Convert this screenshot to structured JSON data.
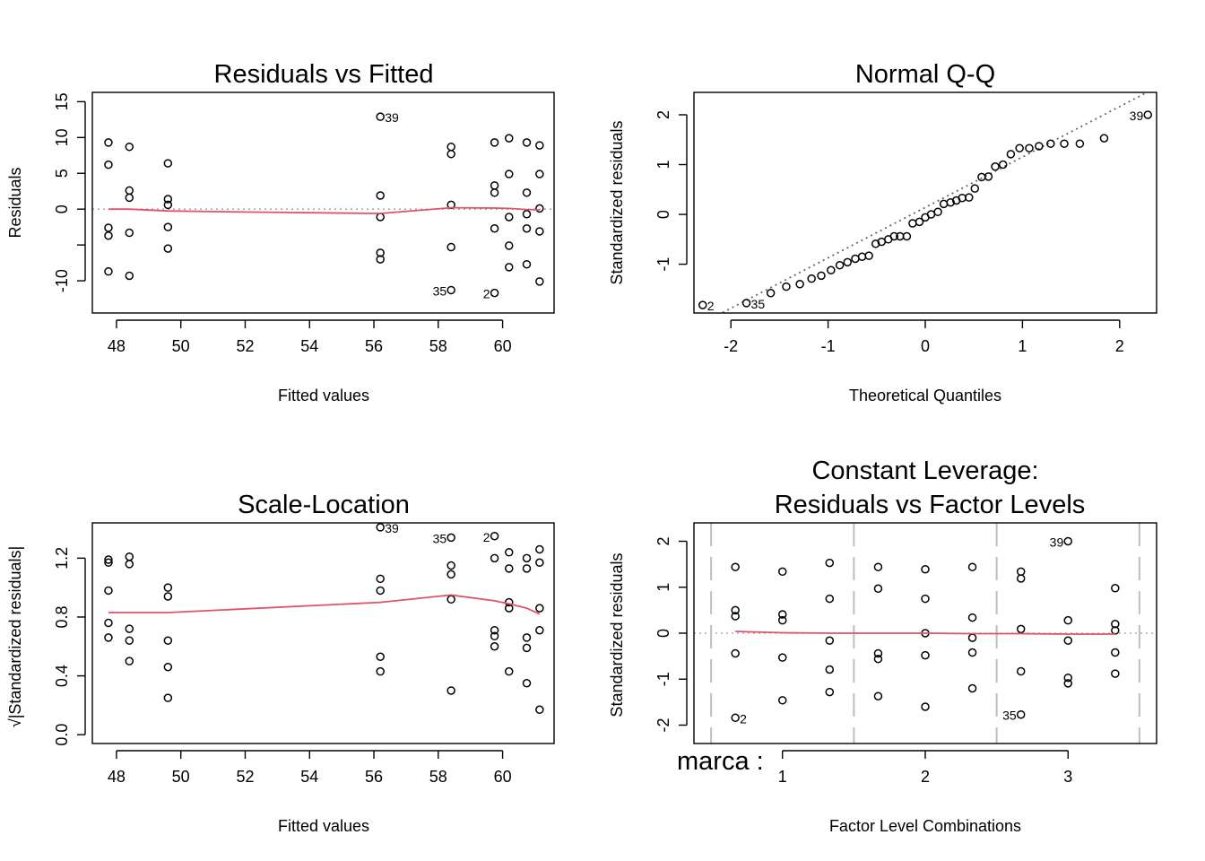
{
  "chart_data": [
    {
      "type": "scatter",
      "title": "Residuals vs Fitted",
      "xlabel": "Fitted values",
      "ylabel": "Residuals",
      "xlim": [
        47.25,
        61.6
      ],
      "ylim": [
        -14.5,
        16.3
      ],
      "xticks": [
        48,
        50,
        52,
        54,
        56,
        58,
        60
      ],
      "yticks": [
        -10,
        -5,
        0,
        5,
        10,
        15
      ],
      "yticklabels": [
        "-10",
        "",
        "0",
        "5",
        "10",
        "15"
      ],
      "points": [
        [
          47.75,
          9.3
        ],
        [
          47.75,
          6.2
        ],
        [
          47.75,
          -2.6
        ],
        [
          47.75,
          -3.7
        ],
        [
          47.75,
          -8.7
        ],
        [
          48.4,
          8.7
        ],
        [
          48.4,
          2.6
        ],
        [
          48.4,
          1.6
        ],
        [
          48.4,
          -3.3
        ],
        [
          48.4,
          -9.3
        ],
        [
          49.6,
          6.4
        ],
        [
          49.6,
          1.4
        ],
        [
          49.6,
          0.6
        ],
        [
          49.6,
          -2.5
        ],
        [
          49.6,
          -5.5
        ],
        [
          56.2,
          12.9
        ],
        [
          56.2,
          1.9
        ],
        [
          56.2,
          -1.1
        ],
        [
          56.2,
          -6.1
        ],
        [
          56.2,
          -7.0
        ],
        [
          58.4,
          8.7
        ],
        [
          58.4,
          7.7
        ],
        [
          58.4,
          0.6
        ],
        [
          58.4,
          -5.3
        ],
        [
          58.4,
          -11.3
        ],
        [
          59.75,
          9.3
        ],
        [
          59.75,
          3.3
        ],
        [
          59.75,
          2.3
        ],
        [
          59.75,
          -2.7
        ],
        [
          59.75,
          -11.7
        ],
        [
          60.2,
          9.9
        ],
        [
          60.2,
          4.9
        ],
        [
          60.2,
          -1.1
        ],
        [
          60.2,
          -5.1
        ],
        [
          60.2,
          -8.1
        ],
        [
          60.75,
          9.3
        ],
        [
          60.75,
          2.3
        ],
        [
          60.75,
          -0.7
        ],
        [
          60.75,
          -2.7
        ],
        [
          60.75,
          -7.7
        ],
        [
          61.15,
          8.9
        ],
        [
          61.15,
          4.9
        ],
        [
          61.15,
          0.1
        ],
        [
          61.15,
          -3.1
        ],
        [
          61.15,
          -10.1
        ]
      ],
      "smooth": [
        [
          47.75,
          0.0
        ],
        [
          48.4,
          0.0
        ],
        [
          49.6,
          -0.25
        ],
        [
          52.0,
          -0.4
        ],
        [
          56.2,
          -0.6
        ],
        [
          58.4,
          0.2
        ],
        [
          59.75,
          0.15
        ],
        [
          60.2,
          0.1
        ],
        [
          60.75,
          -0.05
        ],
        [
          61.15,
          -0.1
        ]
      ],
      "labels": [
        {
          "x": 56.2,
          "y": 12.9,
          "text": "39",
          "side": "right"
        },
        {
          "x": 58.4,
          "y": -11.3,
          "text": "35",
          "side": "left"
        },
        {
          "x": 59.75,
          "y": -11.7,
          "text": "2",
          "side": "left"
        }
      ]
    },
    {
      "type": "scatter",
      "title": "Normal Q-Q",
      "xlabel": "Theoretical Quantiles",
      "ylabel": "Standardized residuals",
      "xlim": [
        -2.38,
        2.38
      ],
      "ylim": [
        -1.98,
        2.45
      ],
      "xticks": [
        -2,
        -1,
        0,
        1,
        2
      ],
      "yticks": [
        -1,
        0,
        1,
        2
      ],
      "yticklabels": [
        "-1",
        "0",
        "1",
        "2"
      ],
      "points": [
        [
          -2.29,
          -1.82
        ],
        [
          -1.84,
          -1.78
        ],
        [
          -1.59,
          -1.58
        ],
        [
          -1.43,
          -1.45
        ],
        [
          -1.29,
          -1.4
        ],
        [
          -1.17,
          -1.29
        ],
        [
          -1.07,
          -1.23
        ],
        [
          -0.97,
          -1.12
        ],
        [
          -0.88,
          -1.02
        ],
        [
          -0.8,
          -0.96
        ],
        [
          -0.72,
          -0.89
        ],
        [
          -0.65,
          -0.85
        ],
        [
          -0.58,
          -0.83
        ],
        [
          -0.51,
          -0.59
        ],
        [
          -0.45,
          -0.55
        ],
        [
          -0.38,
          -0.5
        ],
        [
          -0.32,
          -0.44
        ],
        [
          -0.26,
          -0.44
        ],
        [
          -0.19,
          -0.44
        ],
        [
          -0.13,
          -0.18
        ],
        [
          -0.06,
          -0.15
        ],
        [
          0.0,
          -0.06
        ],
        [
          0.06,
          0.0
        ],
        [
          0.13,
          0.05
        ],
        [
          0.19,
          0.21
        ],
        [
          0.26,
          0.24
        ],
        [
          0.32,
          0.28
        ],
        [
          0.38,
          0.33
        ],
        [
          0.45,
          0.34
        ],
        [
          0.51,
          0.52
        ],
        [
          0.58,
          0.75
        ],
        [
          0.65,
          0.76
        ],
        [
          0.72,
          0.96
        ],
        [
          0.8,
          1.0
        ],
        [
          0.88,
          1.21
        ],
        [
          0.97,
          1.33
        ],
        [
          1.07,
          1.33
        ],
        [
          1.17,
          1.37
        ],
        [
          1.29,
          1.42
        ],
        [
          1.43,
          1.42
        ],
        [
          1.59,
          1.42
        ],
        [
          1.84,
          1.53
        ],
        [
          2.29,
          2.0
        ]
      ],
      "reference_line": [
        [
          -2.38,
          -2.27
        ],
        [
          2.38,
          2.55
        ]
      ],
      "labels": [
        {
          "x": -2.29,
          "y": -1.82,
          "text": "2",
          "side": "right"
        },
        {
          "x": -1.84,
          "y": -1.78,
          "text": "35",
          "side": "right"
        },
        {
          "x": 2.29,
          "y": 2.0,
          "text": "39",
          "side": "left"
        }
      ]
    },
    {
      "type": "scatter",
      "title": "Scale-Location",
      "xlabel": "Fitted values",
      "ylabel": "√|Standardized residuals|",
      "xlim": [
        47.25,
        61.6
      ],
      "ylim": [
        -0.06,
        1.44
      ],
      "xticks": [
        48,
        50,
        52,
        54,
        56,
        58,
        60
      ],
      "yticks": [
        0.0,
        0.4,
        0.8,
        1.2
      ],
      "yticklabels": [
        "0.0",
        "0.4",
        "0.8",
        "1.2"
      ],
      "points": [
        [
          47.75,
          1.19
        ],
        [
          47.75,
          1.17
        ],
        [
          47.75,
          0.98
        ],
        [
          47.75,
          0.76
        ],
        [
          47.75,
          0.66
        ],
        [
          48.4,
          1.21
        ],
        [
          48.4,
          1.16
        ],
        [
          48.4,
          0.72
        ],
        [
          48.4,
          0.64
        ],
        [
          48.4,
          0.5
        ],
        [
          49.6,
          1.0
        ],
        [
          49.6,
          0.94
        ],
        [
          49.6,
          0.64
        ],
        [
          49.6,
          0.46
        ],
        [
          49.6,
          0.25
        ],
        [
          56.2,
          1.41
        ],
        [
          56.2,
          1.06
        ],
        [
          56.2,
          0.98
        ],
        [
          56.2,
          0.53
        ],
        [
          56.2,
          0.43
        ],
        [
          58.4,
          1.34
        ],
        [
          58.4,
          1.15
        ],
        [
          58.4,
          1.09
        ],
        [
          58.4,
          0.92
        ],
        [
          58.4,
          0.3
        ],
        [
          59.75,
          1.35
        ],
        [
          59.75,
          1.2
        ],
        [
          59.75,
          0.71
        ],
        [
          59.75,
          0.67
        ],
        [
          59.75,
          0.6
        ],
        [
          60.2,
          1.24
        ],
        [
          60.2,
          1.13
        ],
        [
          60.2,
          0.9
        ],
        [
          60.2,
          0.86
        ],
        [
          60.2,
          0.43
        ],
        [
          60.75,
          1.2
        ],
        [
          60.75,
          1.13
        ],
        [
          60.75,
          0.66
        ],
        [
          60.75,
          0.59
        ],
        [
          60.75,
          0.35
        ],
        [
          61.15,
          1.26
        ],
        [
          61.15,
          1.17
        ],
        [
          61.15,
          0.86
        ],
        [
          61.15,
          0.71
        ],
        [
          61.15,
          0.17
        ]
      ],
      "smooth": [
        [
          47.75,
          0.83
        ],
        [
          49.6,
          0.83
        ],
        [
          56.2,
          0.9
        ],
        [
          58.4,
          0.95
        ],
        [
          59.75,
          0.91
        ],
        [
          60.2,
          0.89
        ],
        [
          60.75,
          0.86
        ],
        [
          61.15,
          0.82
        ]
      ],
      "labels": [
        {
          "x": 56.2,
          "y": 1.41,
          "text": "39",
          "side": "right"
        },
        {
          "x": 58.4,
          "y": 1.34,
          "text": "35",
          "side": "left"
        },
        {
          "x": 59.75,
          "y": 1.35,
          "text": "2",
          "side": "left"
        }
      ]
    },
    {
      "type": "scatter",
      "title": "Constant Leverage:",
      "subtitle": "Residuals vs Factor Levels",
      "xlabel": "Factor Level Combinations",
      "ylabel": "Standardized residuals",
      "factor_label": "marca :",
      "xlim": [
        0.38,
        3.62
      ],
      "ylim": [
        -2.4,
        2.4
      ],
      "xticks": [
        1,
        2,
        3
      ],
      "yticks": [
        -2,
        -1,
        0,
        1,
        2
      ],
      "yticklabels": [
        "-2",
        "-1",
        "0",
        "1",
        "2"
      ],
      "separators": [
        0.5,
        1.5,
        2.5,
        3.5
      ],
      "points": [
        [
          0.67,
          1.44
        ],
        [
          0.67,
          0.5
        ],
        [
          0.67,
          0.37
        ],
        [
          0.67,
          -0.44
        ],
        [
          0.67,
          -1.84
        ],
        [
          1.0,
          1.34
        ],
        [
          1.0,
          0.41
        ],
        [
          1.0,
          0.28
        ],
        [
          1.0,
          -0.53
        ],
        [
          1.0,
          -1.46
        ],
        [
          1.33,
          1.53
        ],
        [
          1.33,
          0.75
        ],
        [
          1.33,
          -0.16
        ],
        [
          1.33,
          -0.79
        ],
        [
          1.33,
          -1.28
        ],
        [
          1.67,
          1.44
        ],
        [
          1.67,
          0.97
        ],
        [
          1.67,
          -0.44
        ],
        [
          1.67,
          -0.56
        ],
        [
          1.67,
          -1.37
        ],
        [
          2.0,
          1.39
        ],
        [
          2.0,
          0.75
        ],
        [
          2.0,
          0.0
        ],
        [
          2.0,
          -0.48
        ],
        [
          2.0,
          -1.6
        ],
        [
          2.33,
          1.44
        ],
        [
          2.33,
          0.34
        ],
        [
          2.33,
          -0.1
        ],
        [
          2.33,
          -0.42
        ],
        [
          2.33,
          -1.2
        ],
        [
          2.67,
          1.34
        ],
        [
          2.67,
          1.19
        ],
        [
          2.67,
          0.09
        ],
        [
          2.67,
          -0.83
        ],
        [
          2.67,
          -1.77
        ],
        [
          3.0,
          2.0
        ],
        [
          3.0,
          0.28
        ],
        [
          3.0,
          -0.16
        ],
        [
          3.0,
          -0.97
        ],
        [
          3.0,
          -1.09
        ],
        [
          3.33,
          0.98
        ],
        [
          3.33,
          0.2
        ],
        [
          3.33,
          0.06
        ],
        [
          3.33,
          -0.42
        ],
        [
          3.33,
          -0.88
        ]
      ],
      "smooth": [
        [
          0.67,
          0.04
        ],
        [
          1.0,
          0.01
        ],
        [
          1.33,
          0.0
        ],
        [
          1.67,
          0.0
        ],
        [
          2.0,
          0.0
        ],
        [
          2.33,
          -0.01
        ],
        [
          2.67,
          -0.01
        ],
        [
          3.0,
          -0.02
        ],
        [
          3.33,
          -0.02
        ]
      ],
      "labels": [
        {
          "x": 0.67,
          "y": -1.84,
          "text": "2",
          "side": "right"
        },
        {
          "x": 2.67,
          "y": -1.77,
          "text": "35",
          "side": "left"
        },
        {
          "x": 3.0,
          "y": 2.0,
          "text": "39",
          "side": "left"
        }
      ]
    }
  ]
}
